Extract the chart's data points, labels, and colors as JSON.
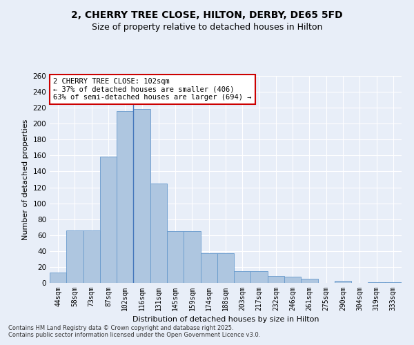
{
  "title": "2, CHERRY TREE CLOSE, HILTON, DERBY, DE65 5FD",
  "subtitle": "Size of property relative to detached houses in Hilton",
  "xlabel": "Distribution of detached houses by size in Hilton",
  "ylabel": "Number of detached properties",
  "categories": [
    "44sqm",
    "58sqm",
    "73sqm",
    "87sqm",
    "102sqm",
    "116sqm",
    "131sqm",
    "145sqm",
    "159sqm",
    "174sqm",
    "188sqm",
    "203sqm",
    "217sqm",
    "232sqm",
    "246sqm",
    "261sqm",
    "275sqm",
    "290sqm",
    "304sqm",
    "319sqm",
    "333sqm"
  ],
  "values": [
    13,
    66,
    66,
    159,
    216,
    218,
    125,
    65,
    65,
    37,
    37,
    15,
    15,
    9,
    8,
    5,
    0,
    3,
    0,
    1,
    1
  ],
  "bar_color": "#aec6e0",
  "bar_edge_color": "#6699cc",
  "vline_color": "#4477bb",
  "vline_x_index": 4,
  "annotation_text": "2 CHERRY TREE CLOSE: 102sqm\n← 37% of detached houses are smaller (406)\n63% of semi-detached houses are larger (694) →",
  "annotation_box_color": "white",
  "annotation_box_edge": "#cc0000",
  "ylim": [
    0,
    260
  ],
  "yticks": [
    0,
    20,
    40,
    60,
    80,
    100,
    120,
    140,
    160,
    180,
    200,
    220,
    240,
    260
  ],
  "background_color": "#e8eef8",
  "grid_color": "white",
  "footer": "Contains HM Land Registry data © Crown copyright and database right 2025.\nContains public sector information licensed under the Open Government Licence v3.0.",
  "title_fontsize": 10,
  "subtitle_fontsize": 9,
  "tick_fontsize": 7,
  "ylabel_fontsize": 8,
  "xlabel_fontsize": 8,
  "annotation_fontsize": 7.5,
  "footer_fontsize": 6
}
